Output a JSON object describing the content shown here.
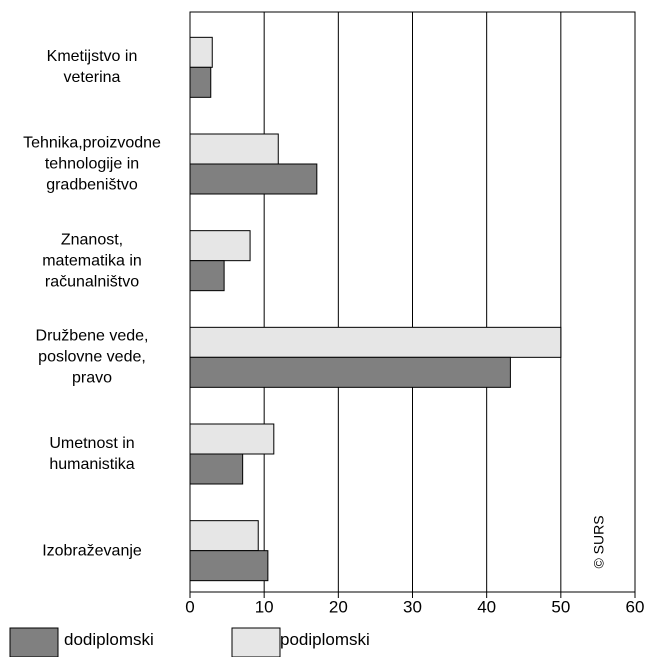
{
  "chart_data": {
    "type": "bar",
    "orientation": "horizontal",
    "categories": [
      "Kmetijstvo in\nveterina",
      "Tehnika,proizvodne\ntehnologije in\ngradbeništvo",
      "Znanost,\nmatematika in\nračunalništvo",
      "Družbene vede,\nposlovne vede,\npravo",
      "Umetnost in\nhumanistika",
      "Izobraževanje"
    ],
    "series": [
      {
        "name": "dodiplomski",
        "color": "#808080",
        "values": [
          2.8,
          17.1,
          4.6,
          43.2,
          7.1,
          10.5
        ]
      },
      {
        "name": "podiplomski",
        "color": "#e6e6e6",
        "values": [
          3,
          11.9,
          8.1,
          50,
          11.3,
          9.2
        ]
      }
    ],
    "xlim": [
      0,
      60
    ],
    "xticks": [
      0,
      10,
      20,
      30,
      40,
      50,
      60
    ],
    "grid": true,
    "annotation": "© SURS",
    "legend": "bottom"
  }
}
